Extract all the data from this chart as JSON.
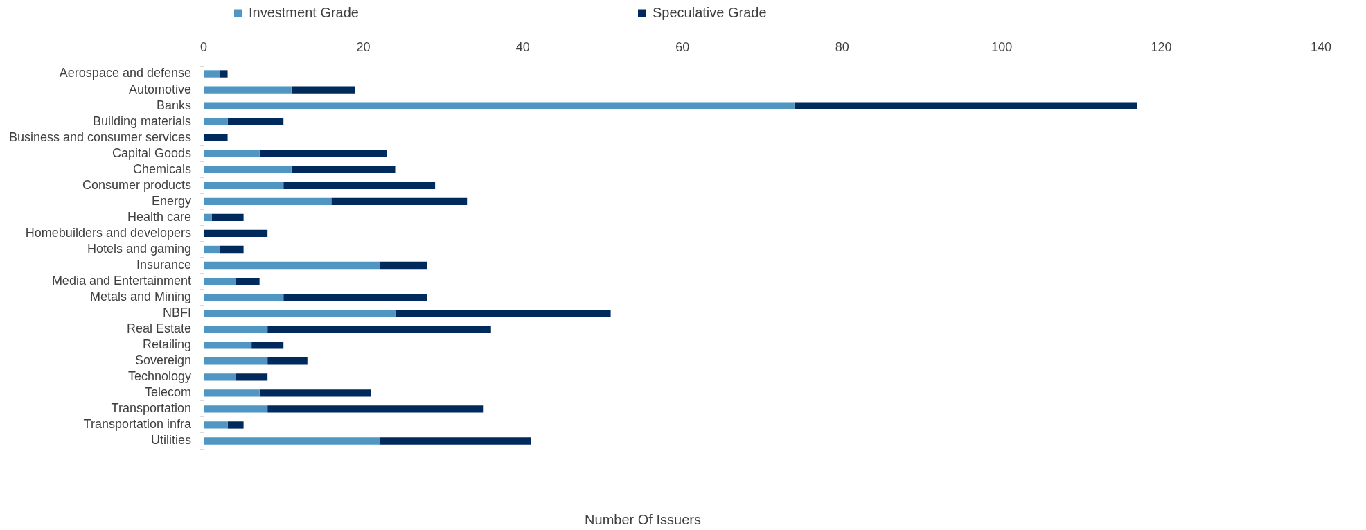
{
  "chart_data": {
    "type": "bar",
    "orientation": "horizontal",
    "stacked": true,
    "categories": [
      "Aerospace and defense",
      "Automotive",
      "Banks",
      "Building materials",
      "Business and consumer services",
      "Capital Goods",
      "Chemicals",
      "Consumer products",
      "Energy",
      "Health care",
      "Homebuilders and developers",
      "Hotels and gaming",
      "Insurance",
      "Media and Entertainment",
      "Metals and Mining",
      "NBFI",
      "Real Estate",
      "Retailing",
      "Sovereign",
      "Technology",
      "Telecom",
      "Transportation",
      "Transportation infra",
      "Utilities"
    ],
    "series": [
      {
        "name": "Investment Grade",
        "color": "#4f97c2",
        "values": [
          2,
          11,
          74,
          3,
          0,
          7,
          11,
          10,
          16,
          1,
          0,
          2,
          22,
          4,
          10,
          24,
          8,
          6,
          8,
          4,
          7,
          8,
          3,
          22
        ]
      },
      {
        "name": "Speculative Grade",
        "color": "#002a5c",
        "values": [
          1,
          8,
          43,
          7,
          3,
          16,
          13,
          19,
          17,
          4,
          8,
          3,
          6,
          3,
          18,
          27,
          28,
          4,
          5,
          4,
          14,
          27,
          2,
          19
        ]
      }
    ],
    "xlabel": "Number Of Issuers",
    "xlim": [
      0,
      140
    ],
    "xticks": [
      0,
      20,
      40,
      60,
      80,
      100,
      120,
      140
    ],
    "legend": "top"
  }
}
